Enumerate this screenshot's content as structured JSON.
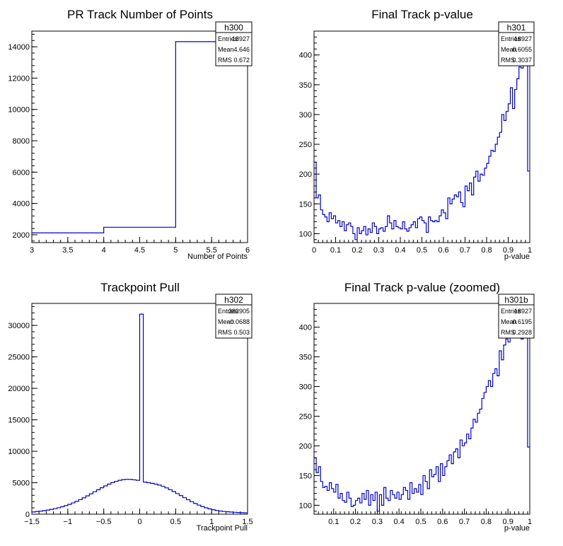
{
  "chart_data": [
    {
      "type": "histogram",
      "title": "PR Track Number of Points",
      "xlabel": "Number of Points",
      "ylabel": "",
      "xlim": [
        3,
        6
      ],
      "ylim": [
        1500,
        15000
      ],
      "x_ticks": [
        3,
        3.5,
        4,
        4.5,
        5,
        5.5,
        6
      ],
      "x_tick_labels": [
        "3",
        "3.5",
        "4",
        "4.5",
        "5",
        "5.5",
        "6"
      ],
      "y_ticks": [
        2000,
        4000,
        6000,
        8000,
        10000,
        12000,
        14000
      ],
      "y_tick_labels": [
        "2000",
        "4000",
        "6000",
        "8000",
        "10000",
        "12000",
        "14000"
      ],
      "bins": {
        "low": 3,
        "high": 6,
        "count": 3
      },
      "values": [
        2120,
        2480,
        14330
      ],
      "stats": {
        "name": "h300",
        "rows": [
          [
            "Entries",
            "18927"
          ],
          [
            "Mean",
            "4.646"
          ],
          [
            "RMS",
            "0.672"
          ]
        ]
      },
      "color": "#0000cc"
    },
    {
      "type": "histogram",
      "title": "Final Track p-value",
      "xlabel": "p-value",
      "ylabel": "",
      "xlim": [
        0,
        1
      ],
      "ylim": [
        85,
        440
      ],
      "x_ticks": [
        0,
        0.1,
        0.2,
        0.3,
        0.4,
        0.5,
        0.6,
        0.7,
        0.8,
        0.9,
        1
      ],
      "x_tick_labels": [
        "0",
        "0.1",
        "0.2",
        "0.3",
        "0.4",
        "0.5",
        "0.6",
        "0.7",
        "0.8",
        "0.9",
        "1"
      ],
      "y_ticks": [
        100,
        150,
        200,
        250,
        300,
        350,
        400
      ],
      "y_tick_labels": [
        "100",
        "150",
        "200",
        "250",
        "300",
        "350",
        "400"
      ],
      "bins": {
        "low": 0,
        "high": 1,
        "count": 100
      },
      "values": [
        220,
        160,
        165,
        140,
        132,
        128,
        120,
        135,
        125,
        130,
        118,
        122,
        112,
        120,
        105,
        115,
        118,
        112,
        100,
        90,
        110,
        100,
        105,
        112,
        98,
        108,
        102,
        118,
        112,
        100,
        108,
        110,
        104,
        112,
        130,
        118,
        108,
        122,
        112,
        110,
        108,
        120,
        108,
        104,
        110,
        115,
        120,
        110,
        125,
        128,
        122,
        118,
        102,
        128,
        122,
        120,
        122,
        120,
        130,
        140,
        135,
        125,
        160,
        150,
        158,
        165,
        162,
        170,
        152,
        145,
        180,
        172,
        185,
        165,
        195,
        205,
        188,
        200,
        198,
        210,
        218,
        230,
        240,
        238,
        250,
        262,
        270,
        300,
        290,
        305,
        318,
        345,
        310,
        342,
        360,
        380,
        378,
        405,
        385,
        205
      ],
      "stats": {
        "name": "h301",
        "rows": [
          [
            "Entries",
            "18927"
          ],
          [
            "Mean",
            "0.6055"
          ],
          [
            "RMS",
            "0.3037"
          ]
        ]
      },
      "color": "#0000cc"
    },
    {
      "type": "histogram",
      "title": "Trackpoint Pull",
      "xlabel": "Trackpoint Pull",
      "ylabel": "",
      "xlim": [
        -1.5,
        1.5
      ],
      "ylim": [
        0,
        33500
      ],
      "x_ticks": [
        -1.5,
        -1,
        -0.5,
        0,
        0.5,
        1,
        1.5
      ],
      "x_tick_labels": [
        "−1.5",
        "−1",
        "−0.5",
        "0",
        "0.5",
        "1",
        "1.5"
      ],
      "y_ticks": [
        0,
        5000,
        10000,
        15000,
        20000,
        25000,
        30000
      ],
      "y_tick_labels": [
        "0",
        "5000",
        "10000",
        "15000",
        "20000",
        "25000",
        "30000"
      ],
      "bins": {
        "low": -1.5,
        "high": 1.5,
        "count": 60
      },
      "values": [
        350,
        420,
        480,
        560,
        650,
        760,
        880,
        1020,
        1180,
        1360,
        1560,
        1790,
        2040,
        2310,
        2600,
        2910,
        3230,
        3560,
        3880,
        4200,
        4500,
        4780,
        5020,
        5220,
        5380,
        5490,
        5540,
        5520,
        5460,
        5380,
        31800,
        5100,
        5000,
        4900,
        4780,
        4620,
        4420,
        4180,
        3900,
        3600,
        3280,
        2950,
        2620,
        2300,
        1990,
        1700,
        1440,
        1210,
        1010,
        840,
        700,
        590,
        500,
        430,
        380,
        340,
        300,
        270,
        240,
        210
      ],
      "stats": {
        "name": "h302",
        "rows": [
          [
            "Entries",
            "283905"
          ],
          [
            "Mean",
            "−0.0688"
          ],
          [
            "RMS",
            "0.503"
          ]
        ]
      },
      "color": "#0000cc"
    },
    {
      "type": "histogram",
      "title": "Final Track p-value (zoomed)",
      "xlabel": "p-value",
      "ylabel": "",
      "xlim": [
        0.01,
        1
      ],
      "ylim": [
        85,
        440
      ],
      "x_ticks": [
        0.1,
        0.2,
        0.3,
        0.4,
        0.5,
        0.6,
        0.7,
        0.8,
        0.9,
        1
      ],
      "x_tick_labels": [
        "0.1",
        "0.2",
        "0.3",
        "0.4",
        "0.5",
        "0.6",
        "0.7",
        "0.8",
        "0.9",
        "1"
      ],
      "y_ticks": [
        100,
        150,
        200,
        250,
        300,
        350,
        400
      ],
      "y_tick_labels": [
        "100",
        "150",
        "200",
        "250",
        "300",
        "350",
        "400"
      ],
      "bins": {
        "low": 0.01,
        "high": 1,
        "count": 99
      },
      "values": [
        180,
        155,
        165,
        140,
        130,
        132,
        125,
        138,
        128,
        122,
        135,
        112,
        120,
        108,
        105,
        122,
        112,
        98,
        100,
        108,
        112,
        104,
        120,
        110,
        125,
        100,
        118,
        108,
        122,
        90,
        118,
        100,
        130,
        112,
        108,
        125,
        118,
        112,
        122,
        110,
        118,
        130,
        125,
        110,
        138,
        120,
        128,
        122,
        135,
        118,
        150,
        140,
        128,
        160,
        148,
        152,
        165,
        140,
        170,
        150,
        165,
        175,
        185,
        170,
        190,
        195,
        180,
        210,
        200,
        205,
        220,
        212,
        230,
        245,
        240,
        255,
        262,
        280,
        290,
        300,
        310,
        300,
        322,
        330,
        318,
        360,
        345,
        370,
        380,
        375,
        398,
        405,
        390,
        408,
        420,
        380,
        392,
        402,
        198
      ],
      "stats": {
        "name": "h301b",
        "rows": [
          [
            "Entries",
            "18927"
          ],
          [
            "Mean",
            "0.6195"
          ],
          [
            "RMS",
            "0.2928"
          ]
        ]
      },
      "color": "#0000cc"
    }
  ]
}
